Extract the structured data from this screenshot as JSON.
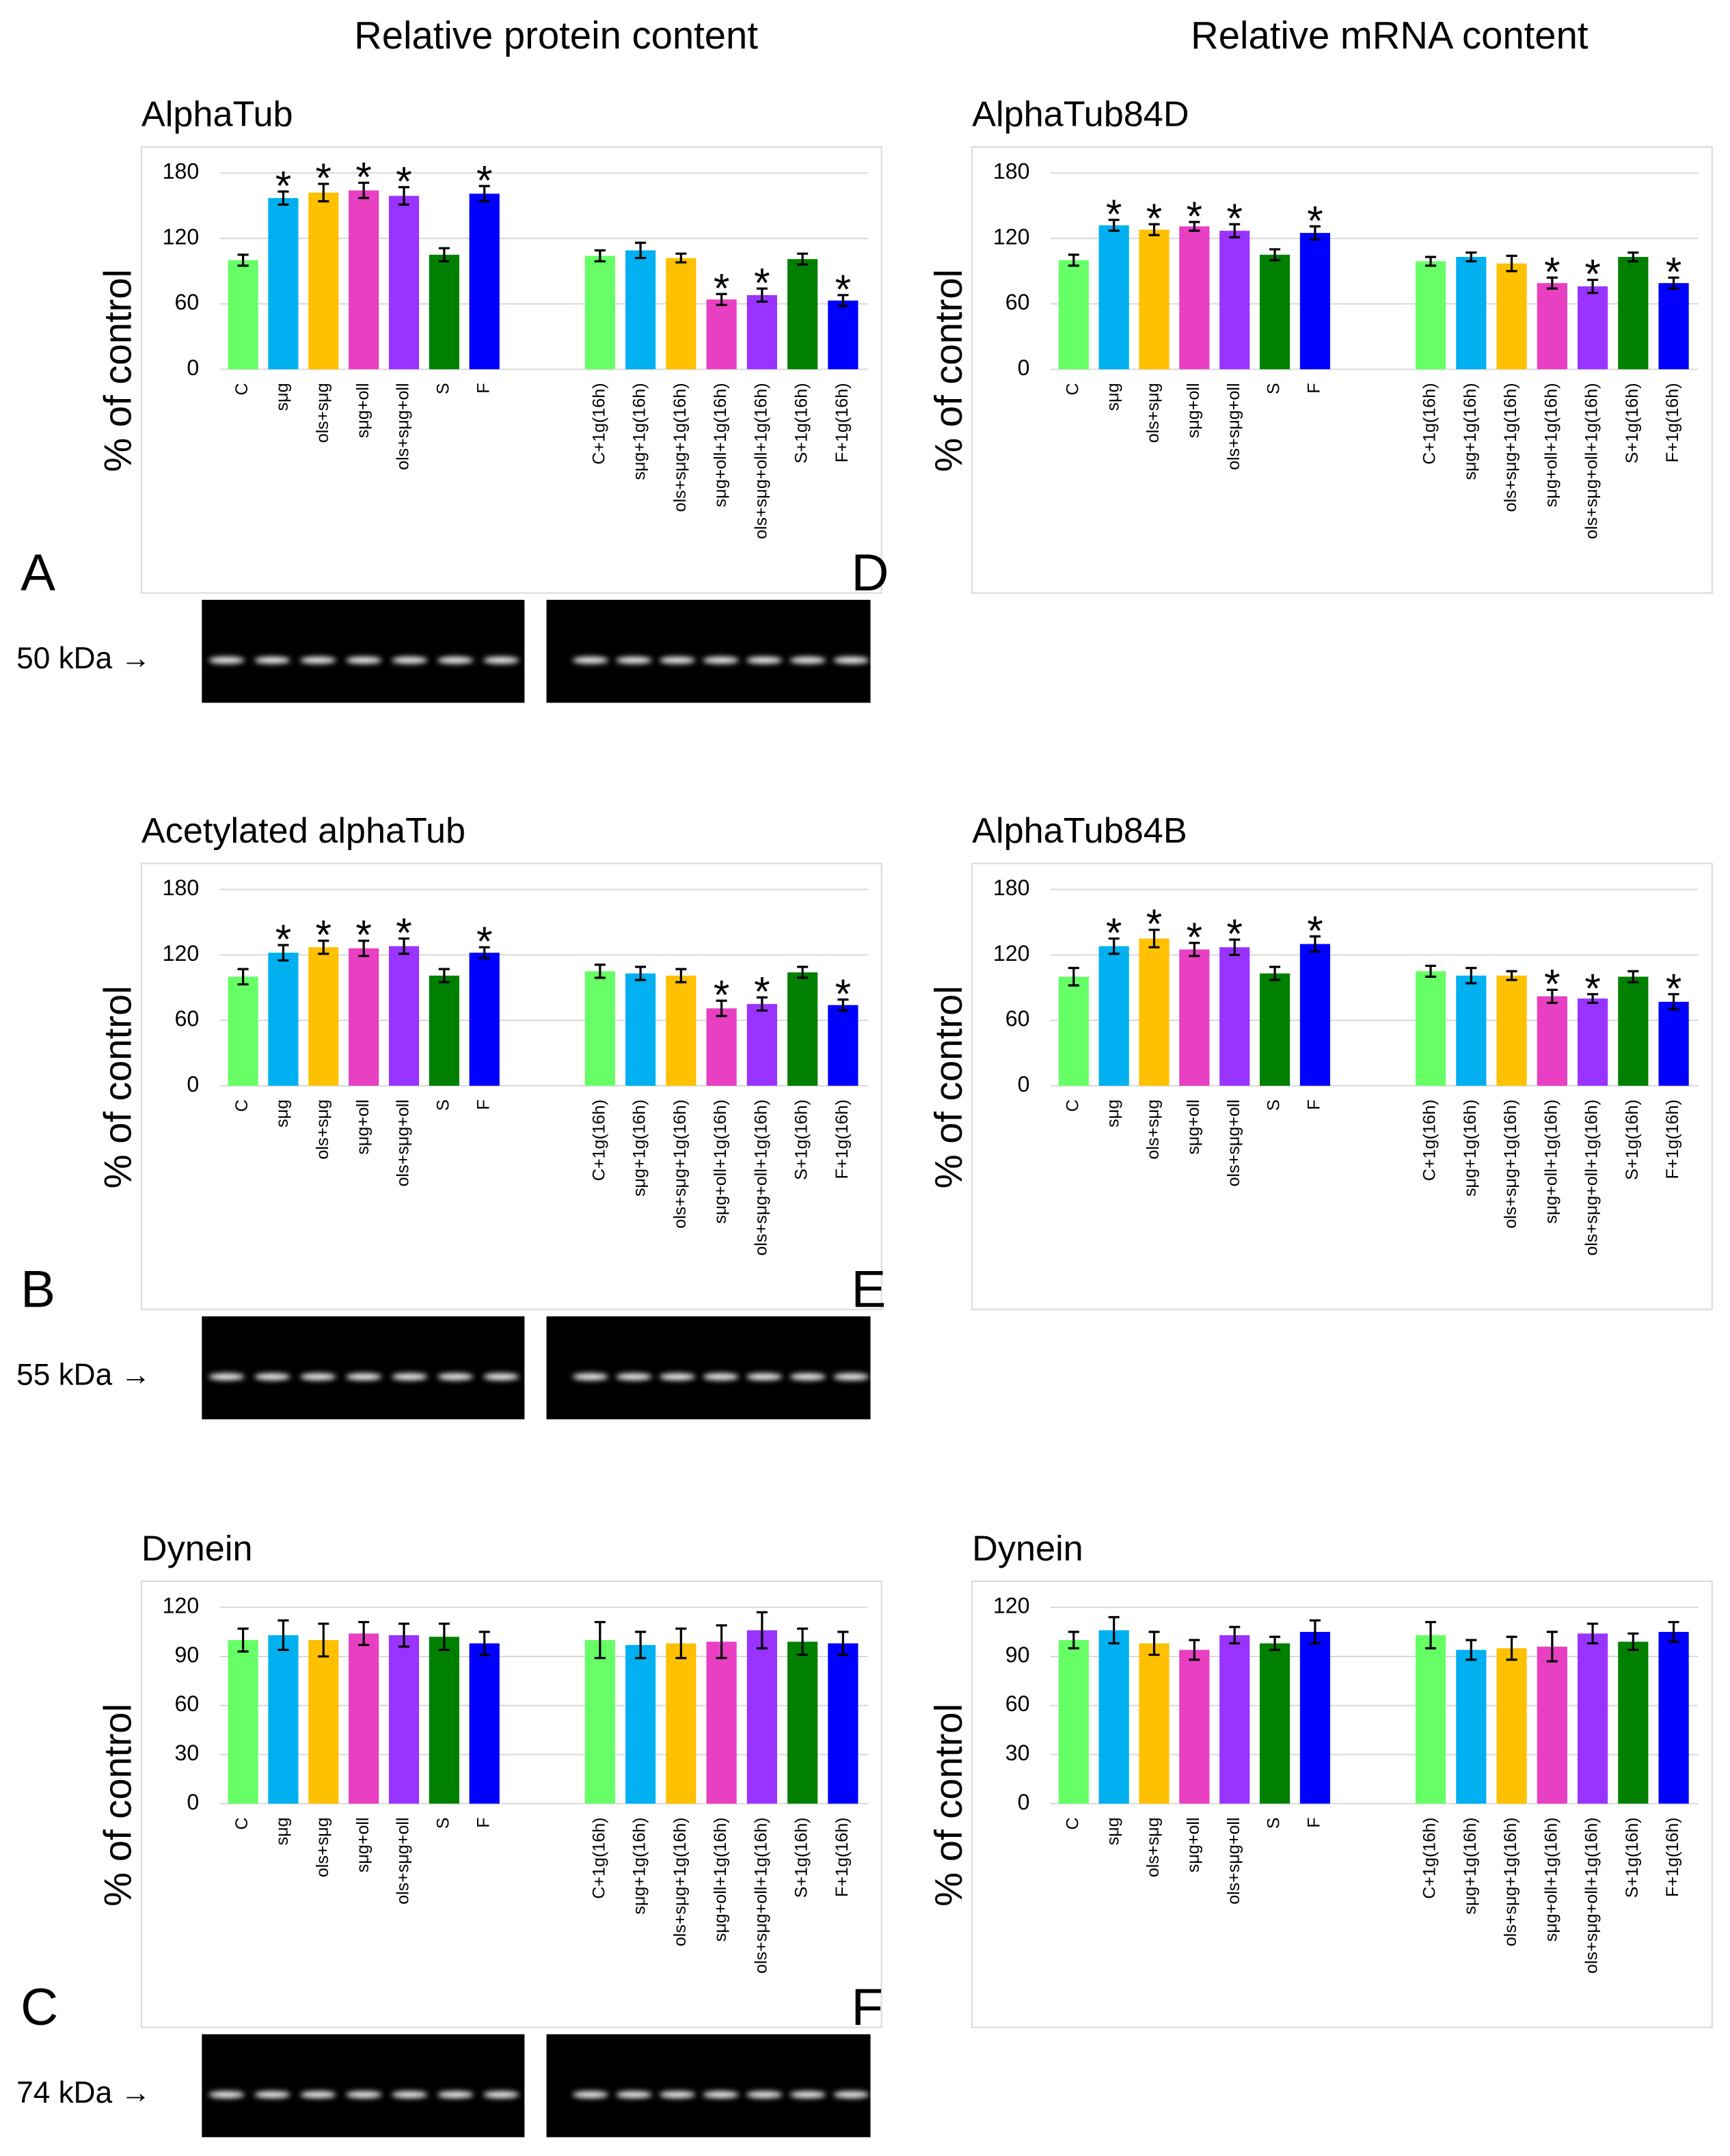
{
  "headers": [
    "Relative protein content",
    "Relative mRNA content"
  ],
  "chart_data": [
    {
      "type": "bar",
      "panel": "A",
      "title": "AlphaTub",
      "ylabel": "% of control",
      "blot_label": "50 kDa →",
      "categories": [
        "C",
        "sμg",
        "ols+sμg",
        "sμg+oll",
        "ols+sμg+oll",
        "S",
        "F",
        "C+1g(16h)",
        "sμg+1g(16h)",
        "ols+sμg+1g(16h)",
        "sμg+oll+1g(16h)",
        "ols+sμg+oll+1g(16h)",
        "S+1g(16h)",
        "F+1g(16h)"
      ],
      "values": [
        100,
        157,
        162,
        164,
        159,
        105,
        161,
        104,
        109,
        102,
        64,
        68,
        101,
        63
      ],
      "errors": [
        5,
        6,
        8,
        7,
        8,
        6,
        7,
        5,
        7,
        4,
        5,
        6,
        5,
        5
      ],
      "value_annotations": [
        null,
        "*",
        "*",
        "*",
        "*",
        null,
        "*",
        null,
        null,
        null,
        "*",
        "*",
        null,
        "*"
      ],
      "colors": [
        "#66ff66",
        "#00b0f0",
        "#ffc000",
        "#e83fc3",
        "#9933ff",
        "#008000",
        "#0000ff",
        "#66ff66",
        "#00b0f0",
        "#ffc000",
        "#e83fc3",
        "#9933ff",
        "#008000",
        "#0000ff"
      ],
      "ylim": [
        0,
        180
      ],
      "yticks": [
        0,
        60,
        120,
        180
      ],
      "grid": true
    },
    {
      "type": "bar",
      "panel": "B",
      "title": "Acetylated alphaTub",
      "ylabel": "% of control",
      "blot_label": "55 kDa →",
      "categories": [
        "C",
        "sμg",
        "ols+sμg",
        "sμg+oll",
        "ols+sμg+oll",
        "S",
        "F",
        "C+1g(16h)",
        "sμg+1g(16h)",
        "ols+sμg+1g(16h)",
        "sμg+oll+1g(16h)",
        "ols+sμg+oll+1g(16h)",
        "S+1g(16h)",
        "F+1g(16h)"
      ],
      "values": [
        100,
        122,
        127,
        126,
        128,
        101,
        122,
        105,
        103,
        101,
        71,
        75,
        104,
        74
      ],
      "errors": [
        7,
        7,
        6,
        7,
        7,
        6,
        5,
        6,
        6,
        6,
        7,
        6,
        5,
        5
      ],
      "value_annotations": [
        null,
        "*",
        "*",
        "*",
        "*",
        null,
        "*",
        null,
        null,
        null,
        "*",
        "*",
        null,
        "*"
      ],
      "colors": [
        "#66ff66",
        "#00b0f0",
        "#ffc000",
        "#e83fc3",
        "#9933ff",
        "#008000",
        "#0000ff",
        "#66ff66",
        "#00b0f0",
        "#ffc000",
        "#e83fc3",
        "#9933ff",
        "#008000",
        "#0000ff"
      ],
      "ylim": [
        0,
        180
      ],
      "yticks": [
        0,
        60,
        120,
        180
      ],
      "grid": true
    },
    {
      "type": "bar",
      "panel": "C",
      "title": "Dynein",
      "ylabel": "% of control",
      "blot_label": "74 kDa →",
      "categories": [
        "C",
        "sμg",
        "ols+sμg",
        "sμg+oll",
        "ols+sμg+oll",
        "S",
        "F",
        "C+1g(16h)",
        "sμg+1g(16h)",
        "ols+sμg+1g(16h)",
        "sμg+oll+1g(16h)",
        "ols+sμg+oll+1g(16h)",
        "S+1g(16h)",
        "F+1g(16h)"
      ],
      "values": [
        100,
        103,
        100,
        104,
        103,
        102,
        98,
        100,
        97,
        98,
        99,
        106,
        99,
        98
      ],
      "errors": [
        7,
        9,
        10,
        7,
        7,
        8,
        7,
        11,
        8,
        9,
        10,
        11,
        8,
        7
      ],
      "colors": [
        "#66ff66",
        "#00b0f0",
        "#ffc000",
        "#e83fc3",
        "#9933ff",
        "#008000",
        "#0000ff",
        "#66ff66",
        "#00b0f0",
        "#ffc000",
        "#e83fc3",
        "#9933ff",
        "#008000",
        "#0000ff"
      ],
      "ylim": [
        0,
        120
      ],
      "yticks": [
        0,
        30,
        60,
        90,
        120
      ],
      "grid": true
    },
    {
      "type": "bar",
      "panel": "D",
      "title": "AlphaTub84D",
      "ylabel": "% of control",
      "categories": [
        "C",
        "sμg",
        "ols+sμg",
        "sμg+oll",
        "ols+sμg+oll",
        "S",
        "F",
        "C+1g(16h)",
        "sμg+1g(16h)",
        "ols+sμg+1g(16h)",
        "sμg+oll+1g(16h)",
        "ols+sμg+oll+1g(16h)",
        "S+1g(16h)",
        "F+1g(16h)"
      ],
      "values": [
        100,
        132,
        128,
        131,
        127,
        105,
        125,
        99,
        103,
        97,
        79,
        76,
        103,
        79
      ],
      "errors": [
        5,
        5,
        5,
        4,
        6,
        5,
        6,
        4,
        4,
        7,
        5,
        6,
        4,
        5
      ],
      "value_annotations": [
        null,
        "*",
        "*",
        "*",
        "*",
        null,
        "*",
        null,
        null,
        null,
        "*",
        "*",
        null,
        "*"
      ],
      "colors": [
        "#66ff66",
        "#00b0f0",
        "#ffc000",
        "#e83fc3",
        "#9933ff",
        "#008000",
        "#0000ff",
        "#66ff66",
        "#00b0f0",
        "#ffc000",
        "#e83fc3",
        "#9933ff",
        "#008000",
        "#0000ff"
      ],
      "ylim": [
        0,
        180
      ],
      "yticks": [
        0,
        60,
        120,
        180
      ],
      "grid": true
    },
    {
      "type": "bar",
      "panel": "E",
      "title": "AlphaTub84B",
      "ylabel": "% of control",
      "categories": [
        "C",
        "sμg",
        "ols+sμg",
        "sμg+oll",
        "ols+sμg+oll",
        "S",
        "F",
        "C+1g(16h)",
        "sμg+1g(16h)",
        "ols+sμg+1g(16h)",
        "sμg+oll+1g(16h)",
        "ols+sμg+oll+1g(16h)",
        "S+1g(16h)",
        "F+1g(16h)"
      ],
      "values": [
        100,
        128,
        135,
        125,
        127,
        103,
        130,
        105,
        101,
        101,
        82,
        80,
        100,
        77
      ],
      "errors": [
        8,
        7,
        8,
        6,
        7,
        6,
        7,
        5,
        7,
        4,
        6,
        4,
        5,
        7
      ],
      "value_annotations": [
        null,
        "*",
        "*",
        "*",
        "*",
        null,
        "*",
        null,
        null,
        null,
        "*",
        "*",
        null,
        "*"
      ],
      "colors": [
        "#66ff66",
        "#00b0f0",
        "#ffc000",
        "#e83fc3",
        "#9933ff",
        "#008000",
        "#0000ff",
        "#66ff66",
        "#00b0f0",
        "#ffc000",
        "#e83fc3",
        "#9933ff",
        "#008000",
        "#0000ff"
      ],
      "ylim": [
        0,
        180
      ],
      "yticks": [
        0,
        60,
        120,
        180
      ],
      "grid": true
    },
    {
      "type": "bar",
      "panel": "F",
      "title": "Dynein",
      "ylabel": "% of control",
      "categories": [
        "C",
        "sμg",
        "ols+sμg",
        "sμg+oll",
        "ols+sμg+oll",
        "S",
        "F",
        "C+1g(16h)",
        "sμg+1g(16h)",
        "ols+sμg+1g(16h)",
        "sμg+oll+1g(16h)",
        "ols+sμg+oll+1g(16h)",
        "S+1g(16h)",
        "F+1g(16h)"
      ],
      "values": [
        100,
        106,
        98,
        94,
        103,
        98,
        105,
        103,
        94,
        95,
        96,
        104,
        99,
        105
      ],
      "errors": [
        5,
        8,
        7,
        6,
        5,
        4,
        7,
        8,
        6,
        7,
        9,
        6,
        5,
        6
      ],
      "colors": [
        "#66ff66",
        "#00b0f0",
        "#ffc000",
        "#e83fc3",
        "#9933ff",
        "#008000",
        "#0000ff",
        "#66ff66",
        "#00b0f0",
        "#ffc000",
        "#e83fc3",
        "#9933ff",
        "#008000",
        "#0000ff"
      ],
      "ylim": [
        0,
        120
      ],
      "yticks": [
        0,
        30,
        60,
        90,
        120
      ],
      "grid": true
    }
  ]
}
